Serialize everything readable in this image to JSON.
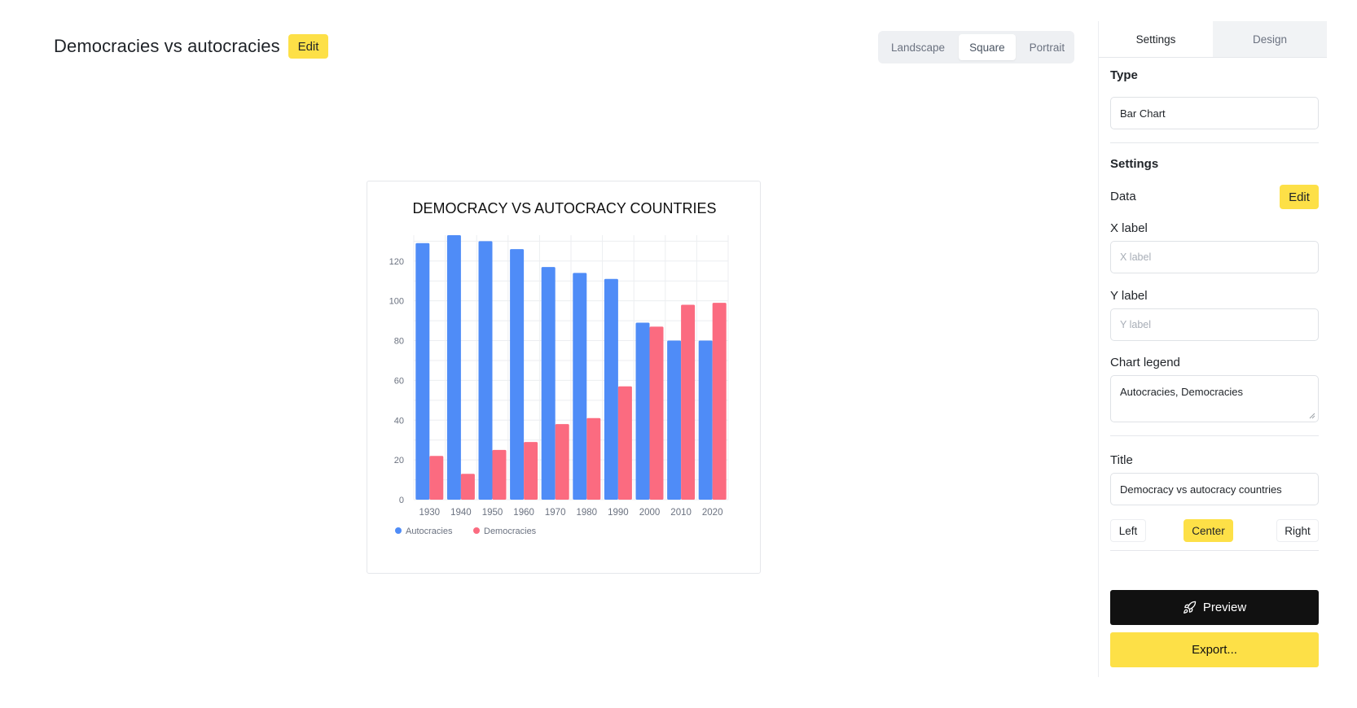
{
  "header": {
    "title": "Democracies vs autocracies",
    "edit_label": "Edit"
  },
  "orientation": {
    "options": [
      "Landscape",
      "Square",
      "Portrait"
    ],
    "selected": "Square"
  },
  "panel": {
    "tabs": [
      "Settings",
      "Design"
    ],
    "active_tab": "Settings",
    "type_heading": "Type",
    "type_value": "Bar Chart",
    "settings_heading": "Settings",
    "data_label": "Data",
    "data_edit_label": "Edit",
    "xlabel_label": "X label",
    "xlabel_placeholder": "X label",
    "ylabel_label": "Y label",
    "ylabel_placeholder": "Y label",
    "legend_label": "Chart legend",
    "legend_value": "Autocracies, Democracies",
    "title_label": "Title",
    "title_value": "Democracy vs autocracy countries",
    "align_options": [
      "Left",
      "Center",
      "Right"
    ],
    "align_selected": "Center",
    "preview_label": "Preview",
    "export_label": "Export..."
  },
  "colors": {
    "accent": "#fde047",
    "autocracies": "#4f8cf7",
    "democracies": "#fb6b80"
  },
  "chart_data": {
    "type": "bar",
    "title": "DEMOCRACY VS AUTOCRACY COUNTRIES",
    "categories": [
      "1930",
      "1940",
      "1950",
      "1960",
      "1970",
      "1980",
      "1990",
      "2000",
      "2010",
      "2020"
    ],
    "series": [
      {
        "name": "Autocracies",
        "values": [
          129,
          133,
          130,
          126,
          117,
          114,
          111,
          89,
          80,
          80
        ]
      },
      {
        "name": "Democracies",
        "values": [
          22,
          13,
          25,
          29,
          38,
          41,
          57,
          87,
          98,
          99
        ]
      }
    ],
    "yticks": [
      0,
      20,
      40,
      60,
      80,
      100,
      120
    ],
    "ylim": [
      0,
      133
    ],
    "xlabel": "",
    "ylabel": "",
    "legend_position": "bottom-left",
    "grid": true
  }
}
